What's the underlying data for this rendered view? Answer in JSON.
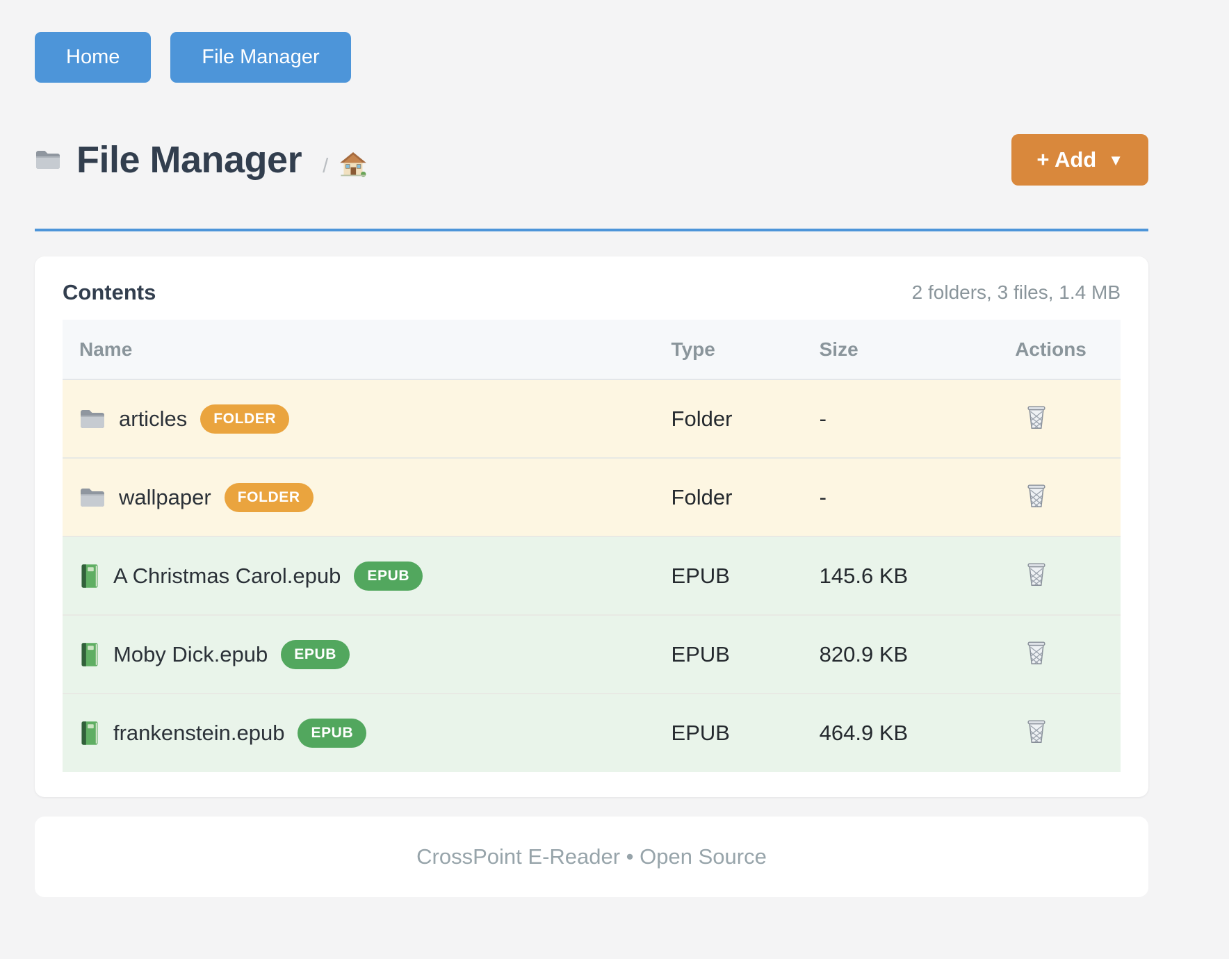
{
  "nav": {
    "buttons": [
      {
        "label": "Home"
      },
      {
        "label": "File Manager"
      }
    ]
  },
  "header": {
    "title": "File Manager",
    "title_icon": "folder-icon",
    "breadcrumb": {
      "separator": "/",
      "home_icon": "house-icon"
    },
    "add_button": {
      "label": "+ Add",
      "caret": "▼"
    }
  },
  "contents": {
    "heading": "Contents",
    "summary": "2 folders, 3 files, 1.4 MB",
    "columns": [
      "Name",
      "Type",
      "Size",
      "Actions"
    ],
    "action_icon": "trash-icon",
    "rows": [
      {
        "icon": "folder-icon",
        "name": "articles",
        "badge": "FOLDER",
        "type": "Folder",
        "size": "-",
        "category": "folder"
      },
      {
        "icon": "folder-icon",
        "name": "wallpaper",
        "badge": "FOLDER",
        "type": "Folder",
        "size": "-",
        "category": "folder"
      },
      {
        "icon": "book-icon",
        "name": "A Christmas Carol.epub",
        "badge": "EPUB",
        "type": "EPUB",
        "size": "145.6 KB",
        "category": "epub"
      },
      {
        "icon": "book-icon",
        "name": "Moby Dick.epub",
        "badge": "EPUB",
        "type": "EPUB",
        "size": "820.9 KB",
        "category": "epub"
      },
      {
        "icon": "book-icon",
        "name": "frankenstein.epub",
        "badge": "EPUB",
        "type": "EPUB",
        "size": "464.9 KB",
        "category": "epub"
      }
    ]
  },
  "footer": {
    "text": "CrossPoint E-Reader • Open Source"
  },
  "colors": {
    "accent_blue": "#4d95d9",
    "accent_orange": "#d9883c",
    "badge_folder": "#eaa43e",
    "badge_epub": "#52a75e",
    "row_folder_bg": "#fdf6e2",
    "row_epub_bg": "#e9f4ea",
    "page_bg": "#f4f4f5"
  }
}
